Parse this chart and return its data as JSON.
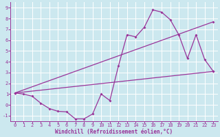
{
  "xlabel": "Windchill (Refroidissement éolien,°C)",
  "bg_color": "#cce8ef",
  "line_color": "#993399",
  "grid_color": "#ffffff",
  "xlim": [
    -0.5,
    23.5
  ],
  "ylim": [
    -1.5,
    9.5
  ],
  "xticks": [
    0,
    1,
    2,
    3,
    4,
    5,
    6,
    7,
    8,
    9,
    10,
    11,
    12,
    13,
    14,
    15,
    16,
    17,
    18,
    19,
    20,
    21,
    22,
    23
  ],
  "yticks": [
    -1,
    0,
    1,
    2,
    3,
    4,
    5,
    6,
    7,
    8,
    9
  ],
  "line1_x": [
    0,
    1,
    2,
    3,
    4,
    5,
    6,
    7,
    8,
    9,
    10,
    11,
    12,
    13,
    14,
    15,
    16,
    17,
    18,
    19,
    20,
    21,
    22,
    23
  ],
  "line1_y": [
    1.1,
    1.0,
    0.8,
    0.15,
    -0.35,
    -0.6,
    -0.65,
    -1.3,
    -1.3,
    -0.85,
    1.0,
    0.4,
    3.6,
    6.5,
    6.3,
    7.2,
    8.8,
    8.6,
    7.9,
    6.5,
    4.3,
    6.5,
    4.2,
    3.1
  ],
  "line2_x": [
    0,
    23
  ],
  "line2_y": [
    1.1,
    3.1
  ],
  "line3_x": [
    0,
    23
  ],
  "line3_y": [
    1.1,
    7.7
  ],
  "xlabel_fontsize": 5.5,
  "tick_fontsize": 5.0
}
